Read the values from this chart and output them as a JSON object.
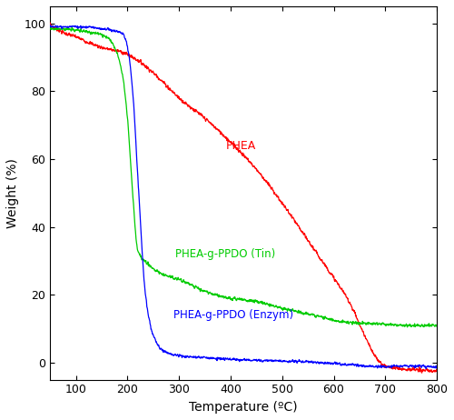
{
  "title": "",
  "xlabel": "Temperature (ºC)",
  "ylabel": "Weight (%)",
  "xlim": [
    50,
    800
  ],
  "ylim": [
    -5,
    105
  ],
  "xticks": [
    100,
    200,
    300,
    400,
    500,
    600,
    700,
    800
  ],
  "yticks": [
    0,
    20,
    40,
    60,
    80,
    100
  ],
  "colors": {
    "PHEA": "#ff0000",
    "Tin": "#00cc00",
    "Enzym": "#0000ff"
  },
  "labels": {
    "PHEA": "PHEA",
    "Tin": "PHEA-g-PPDO (Tin)",
    "Enzym": "PHEA-g-PPDO (Enzym)"
  },
  "label_positions": {
    "PHEA": [
      390,
      63
    ],
    "Tin": [
      293,
      31
    ],
    "Enzym": [
      290,
      13
    ]
  },
  "background": "#ffffff",
  "figsize": [
    5.0,
    4.62
  ],
  "dpi": 100
}
